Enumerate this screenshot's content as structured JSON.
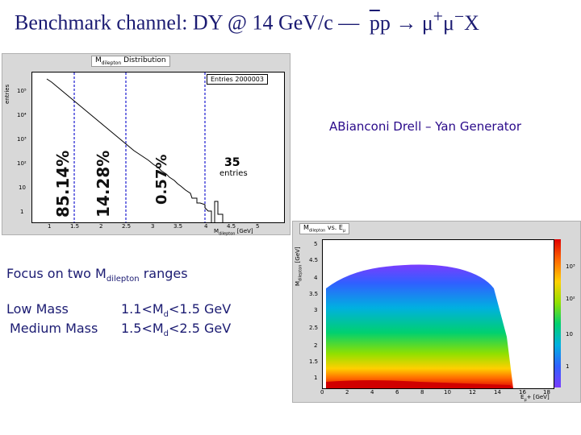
{
  "title": {
    "main": "Benchmark channel: DY @ 14 GeV/c —",
    "pbar": "p",
    "p": "p",
    "arrow": "→",
    "muon": "μ",
    "plus": "+",
    "minus": "−",
    "x": "X"
  },
  "histogram": {
    "title": "M",
    "title_sub": "dilepton",
    "title_rest": " Distribution",
    "ylabel": "entries",
    "stat_label": "Entries 2000003",
    "xlabel": "M",
    "xlabel_sub": "dilepton",
    "xlabel_unit": " [GeV]",
    "xticks": [
      "1",
      "1.5",
      "2",
      "2.5",
      "3",
      "3.5",
      "4",
      "4.5",
      "5"
    ],
    "yticks": [
      "1",
      "10",
      "10²",
      "10³",
      "10⁴",
      "10⁵"
    ],
    "pct_low": "85.14%",
    "pct_mid": "14.28%",
    "pct_high": "0.57%",
    "tail_count": "35",
    "tail_unit": "entries"
  },
  "generator_label": "ABianconi Drell – Yan Generator",
  "map2d": {
    "title": "M",
    "title_sub": "dilepton",
    "title_rest": " vs. E",
    "title_sub2": "μ",
    "ylabel": "M",
    "ylabel_sub": "dilepton",
    "ylabel_unit": " [GeV]",
    "xlabel": "E",
    "xlabel_sub": "μ",
    "xlabel_unit": "+ [GeV]",
    "xticks": [
      "0",
      "2",
      "4",
      "6",
      "8",
      "10",
      "12",
      "14",
      "16",
      "18"
    ],
    "yticks": [
      "1",
      "1.5",
      "2",
      "2.5",
      "3",
      "3.5",
      "4",
      "4.5",
      "5"
    ],
    "zticks": [
      "10³",
      "10²",
      "10",
      "1"
    ]
  },
  "focus": {
    "prefix": "Focus on two M",
    "sub": "dilepton",
    "suffix": " ranges"
  },
  "ranges": {
    "low_name": "Low Mass",
    "low_def": "1.1<M",
    "low_sub": "d",
    "low_end": "<1.5 GeV",
    "med_name": "Medium Mass",
    "med_def": "1.5<M",
    "med_sub": "d",
    "med_end": "<2.5 GeV"
  }
}
